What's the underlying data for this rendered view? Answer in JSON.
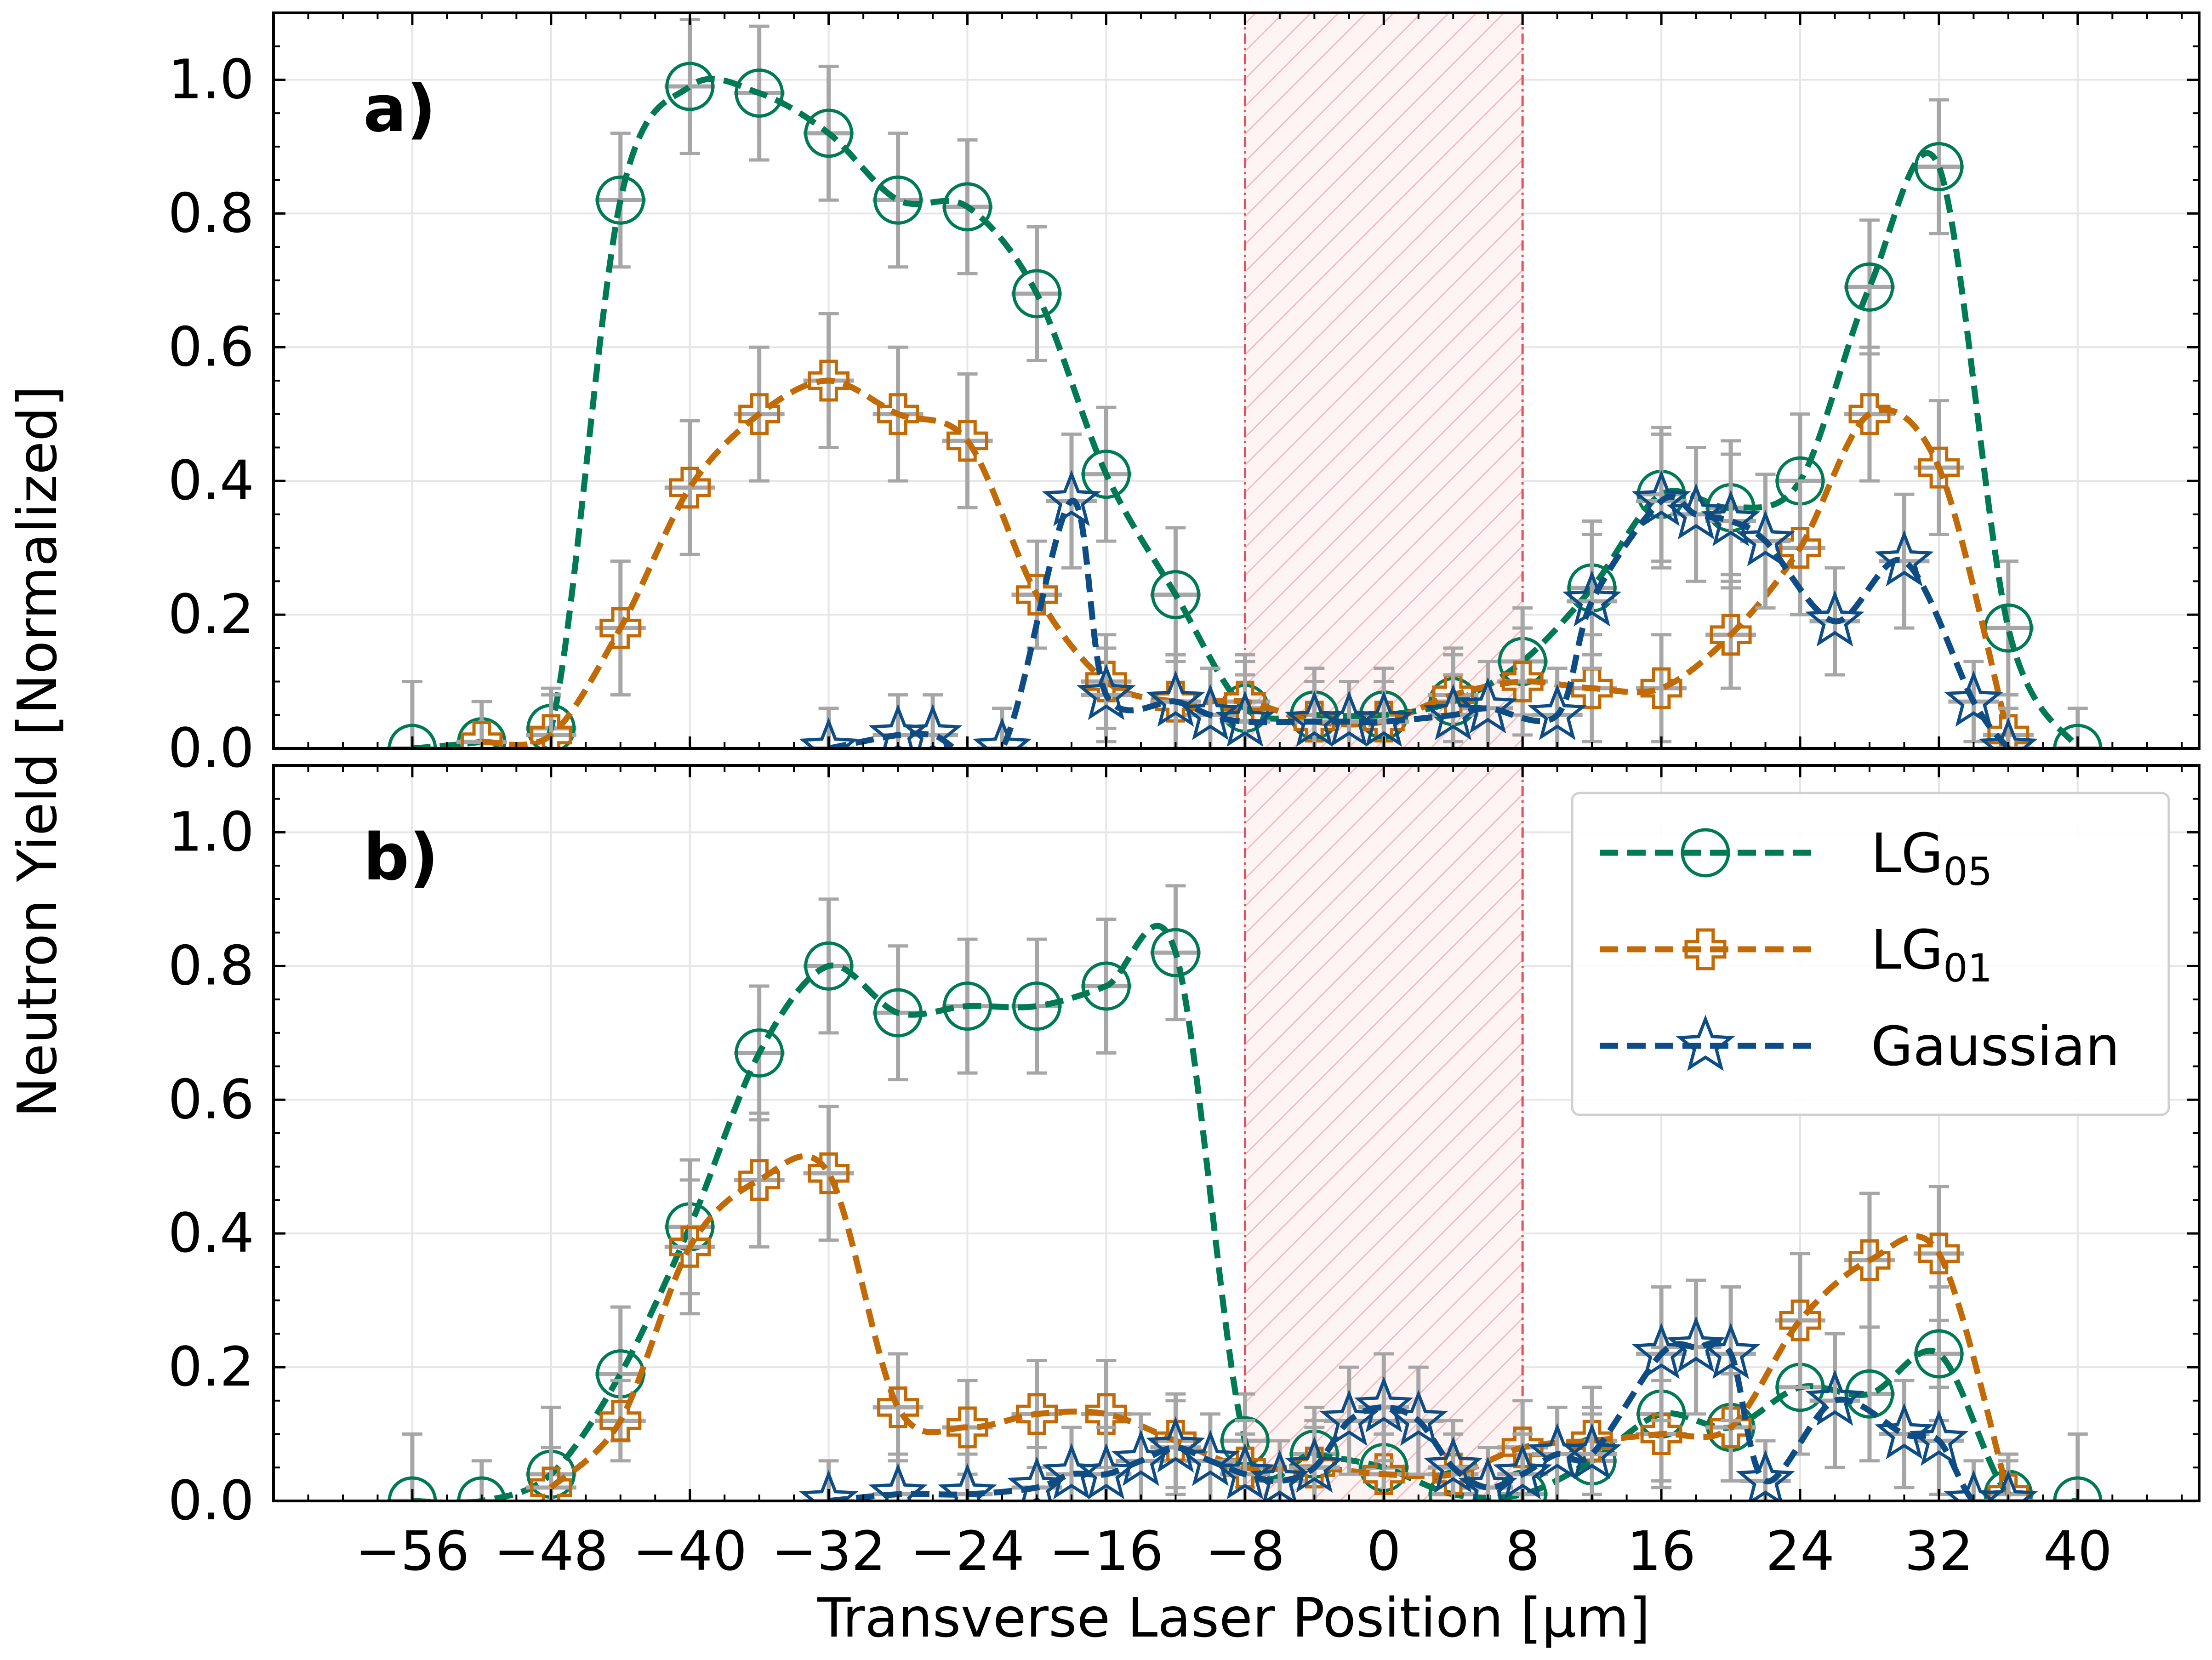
{
  "chart_data": {
    "type": "line",
    "ylabel": "Neutron Yield [Normalized]",
    "xlabel": "Transverse Laser Position [µm]",
    "x_ticks": [
      -56,
      -48,
      -40,
      -32,
      -24,
      -16,
      -8,
      0,
      8,
      16,
      24,
      32,
      40
    ],
    "x_tick_labels": [
      "−56",
      "−48",
      "−40",
      "−32",
      "−24",
      "−16",
      "−8",
      "0",
      "8",
      "16",
      "24",
      "32",
      "40"
    ],
    "y_ticks": [
      0,
      0.2,
      0.4,
      0.6,
      0.8,
      1.0
    ],
    "y_tick_labels": [
      "0.0",
      "0.2",
      "0.4",
      "0.6",
      "0.8",
      "1.0"
    ],
    "xlim": [
      -64,
      47
    ],
    "ylim": [
      0,
      1.1
    ],
    "shaded_region": {
      "x": [
        -8,
        8
      ],
      "color": "#e8505b"
    },
    "series_styles": [
      {
        "name": "LG05",
        "label_main": "LG",
        "label_sub": "05",
        "color": "#007a55",
        "marker": "circle"
      },
      {
        "name": "LG01",
        "label_main": "LG",
        "label_sub": "01",
        "color": "#c26a06",
        "marker": "cross"
      },
      {
        "name": "Gaussian",
        "label_main": "Gaussian",
        "label_sub": "",
        "color": "#0e4c85",
        "marker": "star"
      }
    ],
    "error_color": "#a6a6a6",
    "panels": [
      {
        "id": "a",
        "label": "a)",
        "legend": false,
        "series": [
          {
            "name": "LG05",
            "x": [
              -56,
              -52,
              -48,
              -44,
              -40,
              -36,
              -32,
              -28,
              -24,
              -20,
              -16,
              -12,
              -8,
              -4,
              0,
              4,
              8,
              12,
              16,
              20,
              24,
              28,
              32,
              36,
              40
            ],
            "y": [
              0.0,
              0.01,
              0.03,
              0.82,
              0.99,
              0.98,
              0.92,
              0.82,
              0.81,
              0.68,
              0.41,
              0.23,
              0.06,
              0.05,
              0.05,
              0.07,
              0.13,
              0.24,
              0.38,
              0.36,
              0.4,
              0.69,
              0.87,
              0.18,
              0.0
            ],
            "err": [
              0.1,
              0.06,
              0.06,
              0.1,
              0.1,
              0.1,
              0.1,
              0.1,
              0.1,
              0.1,
              0.1,
              0.1,
              0.07,
              0.07,
              0.07,
              0.07,
              0.08,
              0.1,
              0.1,
              0.1,
              0.1,
              0.1,
              0.1,
              0.1,
              0.06
            ]
          },
          {
            "name": "LG01",
            "x": [
              -52,
              -48,
              -44,
              -40,
              -36,
              -32,
              -28,
              -24,
              -20,
              -16,
              -12,
              -8,
              -4,
              0,
              4,
              8,
              12,
              16,
              20,
              24,
              28,
              32,
              36
            ],
            "y": [
              0.01,
              0.02,
              0.18,
              0.39,
              0.5,
              0.55,
              0.5,
              0.46,
              0.23,
              0.1,
              0.07,
              0.07,
              0.04,
              0.04,
              0.08,
              0.1,
              0.09,
              0.09,
              0.17,
              0.3,
              0.5,
              0.42,
              0.02
            ],
            "err": [
              0.06,
              0.06,
              0.1,
              0.1,
              0.1,
              0.1,
              0.1,
              0.1,
              0.08,
              0.07,
              0.07,
              0.07,
              0.06,
              0.06,
              0.07,
              0.08,
              0.08,
              0.08,
              0.08,
              0.1,
              0.1,
              0.1,
              0.06
            ]
          },
          {
            "name": "Gaussian",
            "x": [
              -32,
              -28,
              -26,
              -22,
              -18,
              -16,
              -12,
              -10,
              -8,
              -4,
              -2,
              0,
              4,
              6,
              10,
              12,
              16,
              18,
              20,
              22,
              26,
              30,
              34,
              36
            ],
            "y": [
              0.0,
              0.02,
              0.02,
              0.0,
              0.37,
              0.08,
              0.07,
              0.05,
              0.04,
              0.04,
              0.04,
              0.04,
              0.05,
              0.06,
              0.05,
              0.22,
              0.37,
              0.35,
              0.34,
              0.31,
              0.19,
              0.28,
              0.07,
              0.0
            ],
            "err": [
              0.06,
              0.06,
              0.06,
              0.06,
              0.1,
              0.07,
              0.07,
              0.07,
              0.07,
              0.06,
              0.06,
              0.06,
              0.06,
              0.07,
              0.07,
              0.1,
              0.1,
              0.1,
              0.1,
              0.1,
              0.08,
              0.1,
              0.06,
              0.06
            ]
          }
        ]
      },
      {
        "id": "b",
        "label": "b)",
        "legend": true,
        "series": [
          {
            "name": "LG05",
            "x": [
              -56,
              -52,
              -48,
              -44,
              -40,
              -36,
              -32,
              -28,
              -24,
              -20,
              -16,
              -12,
              -8,
              -4,
              0,
              4,
              8,
              12,
              16,
              20,
              24,
              28,
              32,
              36,
              40
            ],
            "y": [
              0.0,
              0.0,
              0.04,
              0.19,
              0.41,
              0.67,
              0.8,
              0.73,
              0.74,
              0.74,
              0.77,
              0.82,
              0.09,
              0.07,
              0.05,
              0.01,
              0.01,
              0.06,
              0.13,
              0.11,
              0.17,
              0.16,
              0.22,
              0.01,
              0.0
            ],
            "err": [
              0.1,
              0.06,
              0.1,
              0.1,
              0.1,
              0.1,
              0.1,
              0.1,
              0.1,
              0.1,
              0.1,
              0.1,
              0.07,
              0.07,
              0.07,
              0.06,
              0.06,
              0.07,
              0.1,
              0.08,
              0.1,
              0.1,
              0.1,
              0.06,
              0.1
            ]
          },
          {
            "name": "LG01",
            "x": [
              -48,
              -44,
              -40,
              -36,
              -32,
              -28,
              -24,
              -20,
              -16,
              -12,
              -8,
              -4,
              0,
              4,
              8,
              12,
              16,
              20,
              24,
              28,
              32,
              36
            ],
            "y": [
              0.02,
              0.12,
              0.38,
              0.48,
              0.49,
              0.14,
              0.11,
              0.13,
              0.13,
              0.09,
              0.05,
              0.05,
              0.04,
              0.04,
              0.08,
              0.09,
              0.1,
              0.11,
              0.27,
              0.36,
              0.37,
              0.01
            ],
            "err": [
              0.06,
              0.06,
              0.1,
              0.1,
              0.1,
              0.08,
              0.07,
              0.08,
              0.08,
              0.07,
              0.07,
              0.06,
              0.06,
              0.06,
              0.07,
              0.08,
              0.08,
              0.08,
              0.1,
              0.1,
              0.1,
              0.06
            ]
          },
          {
            "name": "Gaussian",
            "x": [
              -32,
              -28,
              -24,
              -20,
              -18,
              -16,
              -14,
              -12,
              -10,
              -8,
              -6,
              -4,
              -2,
              0,
              2,
              4,
              6,
              8,
              10,
              12,
              16,
              18,
              20,
              22,
              26,
              30,
              32,
              34,
              36
            ],
            "y": [
              0.0,
              0.01,
              0.01,
              0.02,
              0.04,
              0.04,
              0.06,
              0.08,
              0.06,
              0.04,
              0.03,
              0.05,
              0.12,
              0.14,
              0.12,
              0.05,
              0.02,
              0.04,
              0.07,
              0.07,
              0.22,
              0.23,
              0.22,
              0.03,
              0.15,
              0.1,
              0.09,
              0.0,
              0.0
            ],
            "err": [
              0.06,
              0.06,
              0.06,
              0.06,
              0.07,
              0.07,
              0.07,
              0.07,
              0.07,
              0.06,
              0.06,
              0.07,
              0.08,
              0.08,
              0.08,
              0.07,
              0.06,
              0.06,
              0.07,
              0.07,
              0.1,
              0.1,
              0.1,
              0.06,
              0.1,
              0.08,
              0.08,
              0.06,
              0.06
            ]
          }
        ]
      }
    ]
  }
}
